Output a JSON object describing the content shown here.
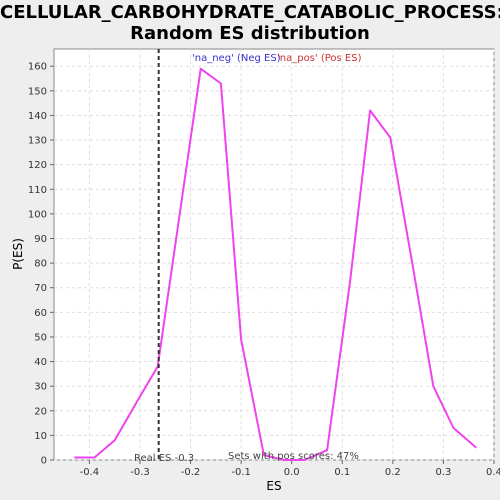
{
  "chart_data": {
    "type": "line",
    "title_line1": "CELLULAR_CARBOHYDRATE_CATABOLIC_PROCESS:",
    "title_line2": "Random ES distribution",
    "xlabel": "ES",
    "ylabel": "P(ES)",
    "xlim": [
      -0.47,
      0.4
    ],
    "ylim": [
      0,
      167
    ],
    "x_ticks": [
      -0.4,
      -0.3,
      -0.2,
      -0.1,
      0.0,
      0.1,
      0.2,
      0.3,
      0.4
    ],
    "x_tick_labels": [
      "-0.4",
      "-0.3",
      "-0.2",
      "-0.1",
      "0.0",
      "0.1",
      "0.2",
      "0.3",
      "0.4"
    ],
    "y_ticks": [
      0,
      10,
      20,
      30,
      40,
      50,
      60,
      70,
      80,
      90,
      100,
      110,
      120,
      130,
      140,
      150,
      160
    ],
    "y_tick_labels": [
      "0",
      "10",
      "20",
      "30",
      "40",
      "50",
      "60",
      "70",
      "80",
      "90",
      "100",
      "110",
      "120",
      "130",
      "140",
      "150",
      "160"
    ],
    "grid": true,
    "legend": {
      "placement": "top-center",
      "entries": [
        {
          "label": "'na_neg' (Neg ES)",
          "color": "#3333cc"
        },
        {
          "label": "'na_pos' (Pos ES)",
          "color": "#cc3333"
        }
      ]
    },
    "series": [
      {
        "color": "#ee44ee",
        "x": [
          -0.43,
          -0.39,
          -0.35,
          -0.305,
          -0.265,
          -0.18,
          -0.14,
          -0.1,
          -0.055,
          -0.015,
          0.025,
          0.07,
          0.115,
          0.155,
          0.195,
          0.24,
          0.28,
          0.32,
          0.365
        ],
        "y": [
          1,
          1,
          8,
          24,
          38,
          159,
          153,
          49,
          2,
          0,
          0,
          4,
          72,
          142,
          131,
          78,
          30,
          13,
          5
        ]
      }
    ],
    "real_es": {
      "x": -0.263,
      "label": "Real ES -0.3",
      "color": "#333333"
    },
    "annotation": "Sets with pos scores: 47%"
  }
}
